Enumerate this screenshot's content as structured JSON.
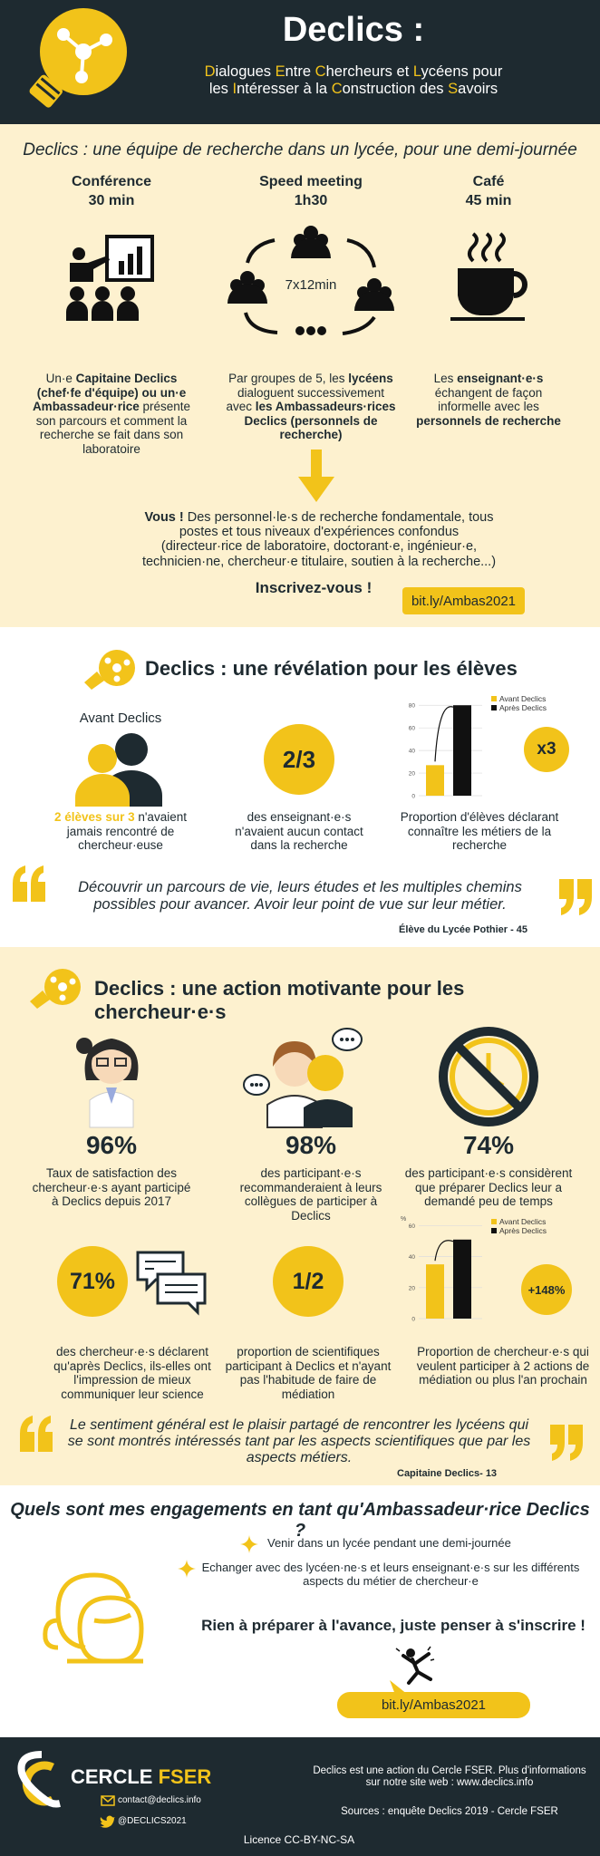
{
  "header": {
    "title": "Declics :",
    "subtitle_lines": [
      "Dialogues Entre Chercheurs et Lycéens pour",
      "les Intéresser à la Construction des Savoirs"
    ]
  },
  "format": {
    "heading": "Declics : une équipe de recherche dans un lycée, pour une demi-journée",
    "steps": [
      {
        "title": "Conférence",
        "duration": "30 min",
        "description": [
          "Un·e ",
          {
            "bold": "Capitaine Declics (chef·fe d'équipe) ou un·e Ambassadeur·rice"
          },
          " présente son parcours et comment la recherche se fait dans son laboratoire"
        ]
      },
      {
        "title": "Speed meeting",
        "duration": "1h30",
        "icon_label": "7x12min",
        "description": [
          "Par groupes de 5, les ",
          {
            "bold": "lycéens"
          },
          " dialoguent successivement avec ",
          {
            "bold": "les Ambassadeurs·rices Declics (personnels de recherche)"
          }
        ]
      },
      {
        "title": "Café",
        "duration": "45 min",
        "description": [
          "Les ",
          {
            "bold": "enseignant·e·s"
          },
          " échangent de façon informelle avec les ",
          {
            "bold": "personnels de recherche"
          }
        ]
      }
    ],
    "call": [
      {
        "bold": "Vous !"
      },
      " Des personnel·le·s de recherche fondamentale, tous postes et tous niveaux d'expériences confondus (directeur·rice de laboratoire, doctorant·e, ingénieur·e, technicien·ne, chercheur·e titulaire, soutien à la recherche...)"
    ],
    "signup": "Inscrivez-vous !",
    "link": "bit.ly/Ambas2021"
  },
  "students": {
    "heading": "Declics : une révélation pour les élèves",
    "before_label": "Avant Declics",
    "stats": [
      {
        "description": [
          {
            "hl": "2 élèves sur 3"
          },
          " n'avaient jamais rencontré de chercheur·euse"
        ]
      },
      {
        "figure": "2/3",
        "description": [
          "des enseignant·e·s n'avaient aucun contact dans la recherche"
        ]
      },
      {
        "figure": "x3",
        "description": [
          "Proportion d'élèves déclarant connaître les métiers de la recherche"
        ]
      }
    ],
    "chart": {
      "series": [
        {
          "name": "Avant Declics",
          "color": "#f2c31a",
          "value": 27
        },
        {
          "name": "Après Declics",
          "color": "#111111",
          "value": 80
        }
      ],
      "ylim": [
        0,
        85
      ],
      "yticks": [
        0,
        20,
        40,
        60,
        80
      ]
    },
    "quote": "Découvrir un parcours de vie, leurs études et les multiples chemins possibles pour avancer. Avoir leur point de vue sur leur métier.",
    "quote_author": "Élève du  Lycée Pothier - 45"
  },
  "researchers": {
    "heading": "Declics : une action motivante pour les chercheur·e·s",
    "stats": [
      {
        "figure": "96%",
        "description": "Taux de satisfaction des chercheur·e·s ayant participé à Declics depuis 2017"
      },
      {
        "figure": "98%",
        "description": "des participant·e·s recommanderaient à leurs collègues de participer à Declics"
      },
      {
        "figure": "74%",
        "description": "des participant·e·s considèrent que préparer Declics leur a demandé peu de temps"
      },
      {
        "figure": "71%",
        "description": "des chercheur·e·s déclarent qu'après Declics, ils-elles ont l'impression de mieux communiquer leur science"
      },
      {
        "figure": "1/2",
        "description": "proportion de scientifiques participant à Declics et n'ayant pas l'habitude de faire de médiation"
      },
      {
        "figure": "+148%",
        "description": "Proportion de chercheur·e·s qui veulent participer à 2 actions de médiation ou plus l'an prochain"
      }
    ],
    "chart": {
      "y_label": "%",
      "series": [
        {
          "name": "Avant Declics",
          "color": "#f2c31a",
          "value": 35
        },
        {
          "name": "Après Declics",
          "color": "#111111",
          "value": 51
        }
      ],
      "ylim": [
        0,
        62
      ],
      "yticks": [
        0,
        20,
        40,
        60
      ]
    },
    "quote": "Le sentiment général est le plaisir partagé de rencontrer les lycéens qui se sont montrés intéressés tant par les aspects scientifiques que par les aspects métiers.",
    "quote_author": "Capitaine Declics- 13"
  },
  "engagements": {
    "heading": "Quels sont mes engagements en tant qu'Ambassadeur·rice Declics ?",
    "items": [
      "Venir dans un lycée pendant une demi-journée",
      "Echanger avec des lycéen·ne·s et leurs enseignant·e·s sur les différents aspects du métier de chercheur·e"
    ],
    "note": "Rien à préparer à l'avance, juste penser à s'inscrire !",
    "link": "bit.ly/Ambas2021"
  },
  "footer": {
    "org": [
      "CERCLE",
      "FSER"
    ],
    "email": "contact@declics.info",
    "twitter": "@DECLICS2021",
    "about": "Declics est une action du Cercle FSER. Plus d'informations sur notre site web : www.declics.info",
    "sources": "Sources : enquête Declics 2019 - Cercle FSER",
    "licence": "Licence CC-BY-NC-SA"
  }
}
